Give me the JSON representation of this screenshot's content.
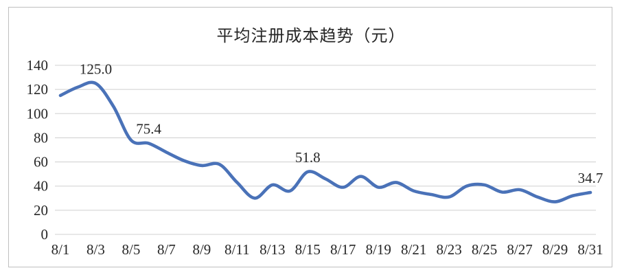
{
  "chart_data": {
    "type": "line",
    "title": "平均注册成本趋势（元）",
    "x": [
      "8/1",
      "8/2",
      "8/3",
      "8/4",
      "8/5",
      "8/6",
      "8/7",
      "8/8",
      "8/9",
      "8/10",
      "8/11",
      "8/12",
      "8/13",
      "8/14",
      "8/15",
      "8/16",
      "8/17",
      "8/18",
      "8/19",
      "8/20",
      "8/21",
      "8/22",
      "8/23",
      "8/24",
      "8/25",
      "8/26",
      "8/27",
      "8/28",
      "8/29",
      "8/30",
      "8/31"
    ],
    "values": [
      115,
      122,
      125,
      106,
      78,
      75.4,
      68,
      61,
      57,
      58,
      43,
      30,
      41,
      36,
      51.8,
      46,
      39,
      48,
      39,
      43,
      36,
      33,
      31,
      40,
      41,
      35,
      37,
      31,
      27,
      32,
      34.7
    ],
    "data_labels": [
      {
        "x": "8/3",
        "text": "125.0"
      },
      {
        "x": "8/6",
        "text": "75.4"
      },
      {
        "x": "8/15",
        "text": "51.8"
      },
      {
        "x": "8/31",
        "text": "34.7"
      }
    ],
    "xtick_labels": [
      "8/1",
      "8/3",
      "8/5",
      "8/7",
      "8/9",
      "8/11",
      "8/13",
      "8/15",
      "8/17",
      "8/19",
      "8/21",
      "8/23",
      "8/25",
      "8/27",
      "8/29",
      "8/31"
    ],
    "yticks": [
      0,
      20,
      40,
      60,
      80,
      100,
      120,
      140
    ],
    "ylim": [
      0,
      140
    ],
    "grid": true,
    "legend": false,
    "smooth": true,
    "line_color": "#4a72b8",
    "grid_color": "#d9d9d9",
    "frame_color": "#bfbfbf",
    "text_color": "#262626"
  }
}
